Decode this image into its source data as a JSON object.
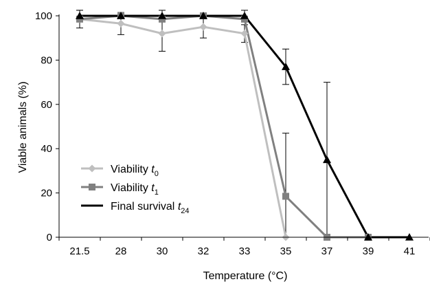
{
  "chart_data": {
    "type": "line",
    "title": "",
    "xlabel": "Temperature (°C)",
    "ylabel": "Viable animals (%)",
    "categories": [
      "21.5",
      "28",
      "30",
      "32",
      "33",
      "35",
      "37",
      "39",
      "41"
    ],
    "ylim": [
      0,
      100
    ],
    "yticks": [
      0,
      20,
      40,
      60,
      80,
      100
    ],
    "grid": false,
    "legend_position": "bottom-left",
    "series": [
      {
        "name": "Viability t0",
        "legend_main": "Viability ",
        "legend_sub": "0",
        "color": "#bfbfbf",
        "marker": "diamond",
        "values": [
          98.5,
          96.5,
          92,
          95,
          92,
          0,
          null,
          null,
          null
        ],
        "errors": [
          4,
          5,
          8,
          5,
          4,
          null,
          null,
          null,
          null
        ]
      },
      {
        "name": "Viability t1",
        "legend_main": "Viability ",
        "legend_sub": "1",
        "color": "#808080",
        "marker": "square",
        "values": [
          98.5,
          100,
          98.5,
          100,
          98.5,
          18.5,
          0,
          0,
          null
        ],
        "errors": [
          null,
          null,
          null,
          null,
          null,
          28.5,
          null,
          null,
          null
        ]
      },
      {
        "name": "Final survival t24",
        "legend_main": "Final survival ",
        "legend_sub": "24",
        "color": "#000000",
        "marker": "triangle",
        "values": [
          100,
          100,
          100,
          100,
          100,
          77,
          35,
          0,
          0
        ],
        "errors": [
          2.5,
          null,
          2.5,
          null,
          2.5,
          8,
          35,
          null,
          null
        ]
      }
    ]
  }
}
